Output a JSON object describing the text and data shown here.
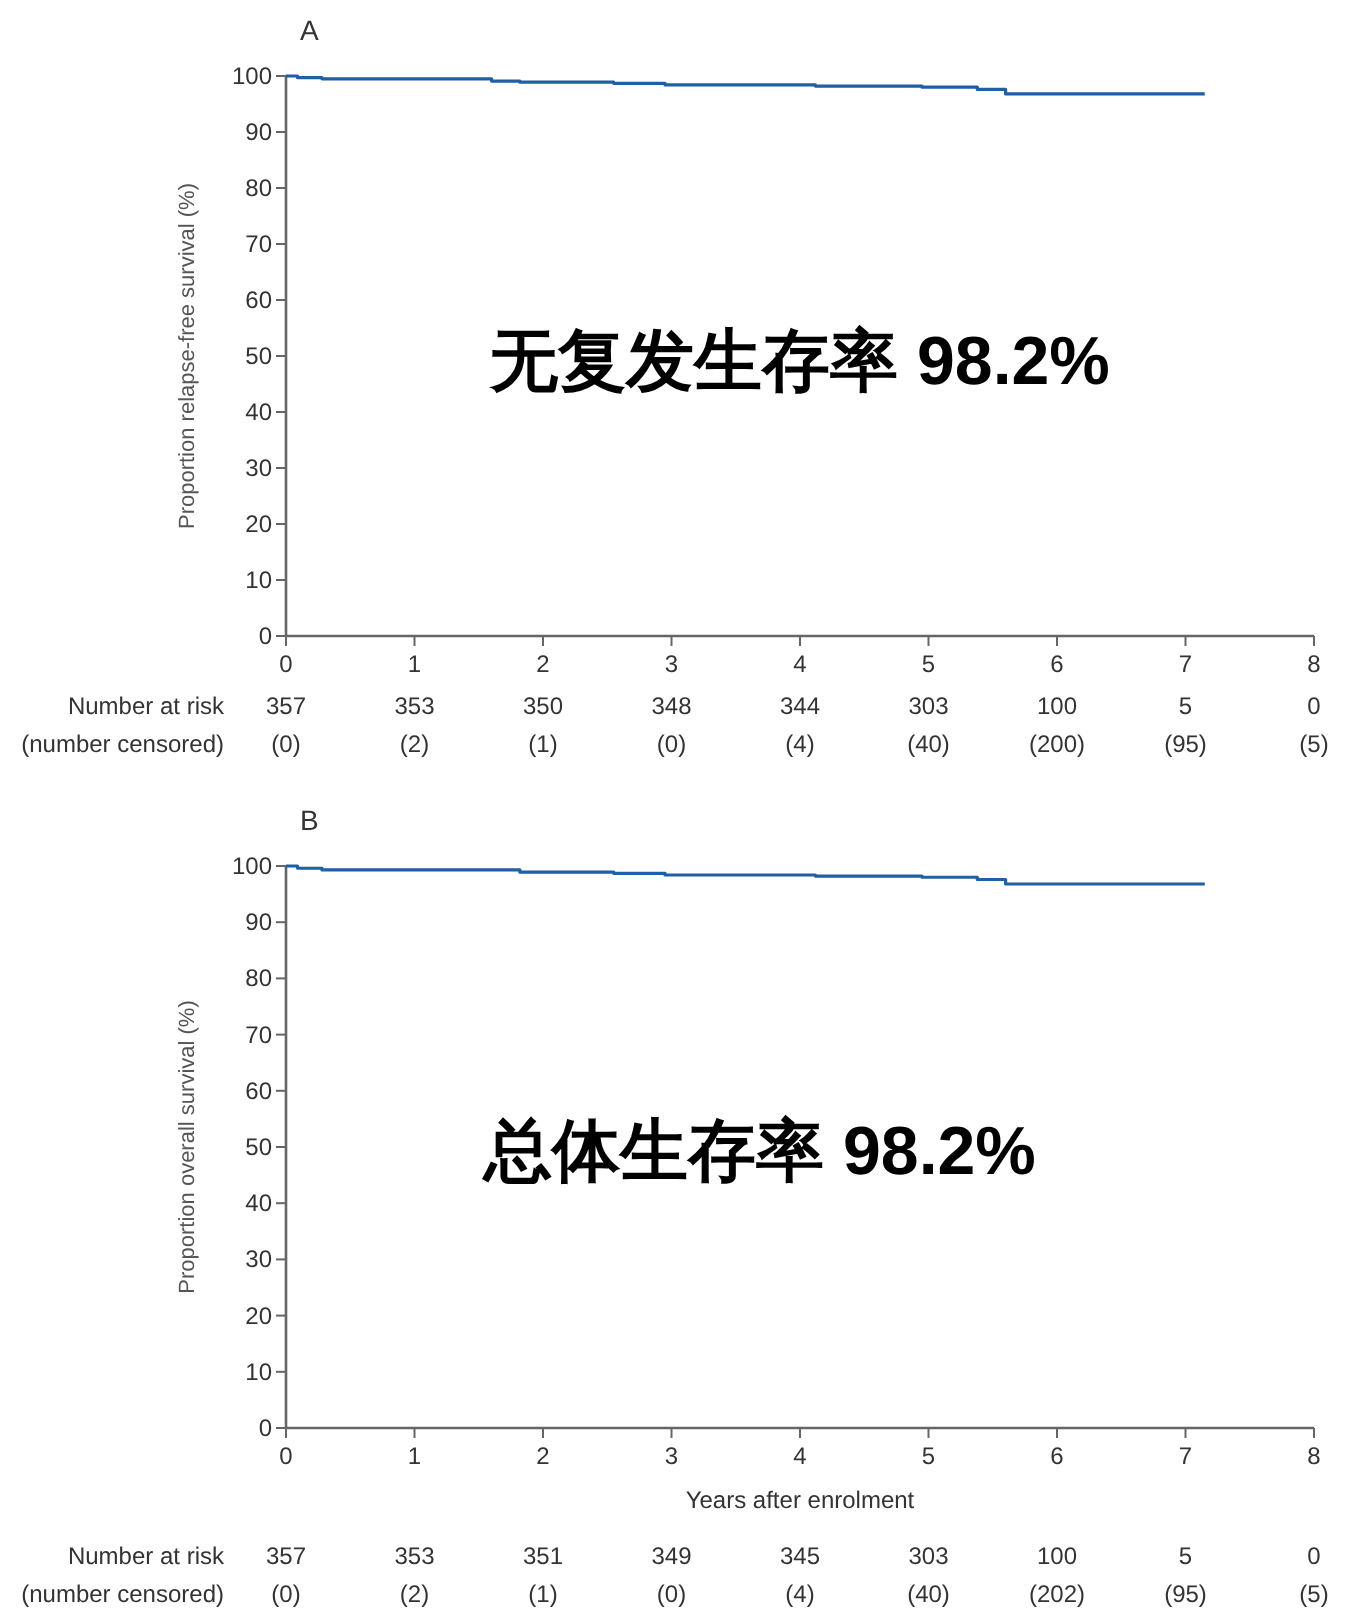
{
  "chart_data": [
    {
      "type": "step",
      "title": "A",
      "ylabel": "Proportion relapse-free survival (%)",
      "xlim": [
        0,
        8
      ],
      "ylim": [
        0,
        100
      ],
      "xticks": [
        0,
        1,
        2,
        3,
        4,
        5,
        6,
        7,
        8
      ],
      "yticks": [
        0,
        10,
        20,
        30,
        40,
        50,
        60,
        70,
        80,
        90,
        100
      ],
      "grid": false,
      "series": [
        {
          "color": "#1f5fa3",
          "x": [
            0,
            0.09,
            0.28,
            1.6,
            1.82,
            2.55,
            2.95,
            4.12,
            4.95,
            5.38,
            5.6,
            7.15
          ],
          "values": [
            100,
            99.7,
            99.5,
            99.1,
            98.9,
            98.7,
            98.4,
            98.2,
            98.0,
            97.6,
            96.8,
            96.8
          ]
        }
      ],
      "annotations": [
        "无复发生存率 98.2%",
        "Number at risk",
        "(number censored)",
        "357\n(0)",
        "353\n(2)",
        "350\n(1)",
        "348\n(0)",
        "344\n(4)",
        "303\n(40)",
        "100\n(200)",
        "5\n(95)",
        "0\n(5)"
      ]
    },
    {
      "type": "step",
      "title": "B",
      "ylabel": "Proportion overall survival (%)",
      "xlabel": "Years after enrolment",
      "xlim": [
        0,
        8
      ],
      "ylim": [
        0,
        100
      ],
      "xticks": [
        0,
        1,
        2,
        3,
        4,
        5,
        6,
        7,
        8
      ],
      "yticks": [
        0,
        10,
        20,
        30,
        40,
        50,
        60,
        70,
        80,
        90,
        100
      ],
      "grid": false,
      "series": [
        {
          "color": "#1f5fa3",
          "x": [
            0,
            0.09,
            0.28,
            1.82,
            2.55,
            2.95,
            4.12,
            4.95,
            5.38,
            5.6,
            7.15
          ],
          "values": [
            100,
            99.6,
            99.3,
            98.9,
            98.7,
            98.4,
            98.2,
            98.0,
            97.6,
            96.8,
            96.8
          ]
        }
      ],
      "annotations": [
        "总体生存率 98.2%",
        "Number at risk",
        "(number censored)",
        "357\n(0)",
        "353\n(2)",
        "351\n(1)",
        "349\n(0)",
        "345\n(4)",
        "303\n(40)",
        "100\n(202)",
        "5\n(95)",
        "0\n(5)"
      ]
    }
  ]
}
